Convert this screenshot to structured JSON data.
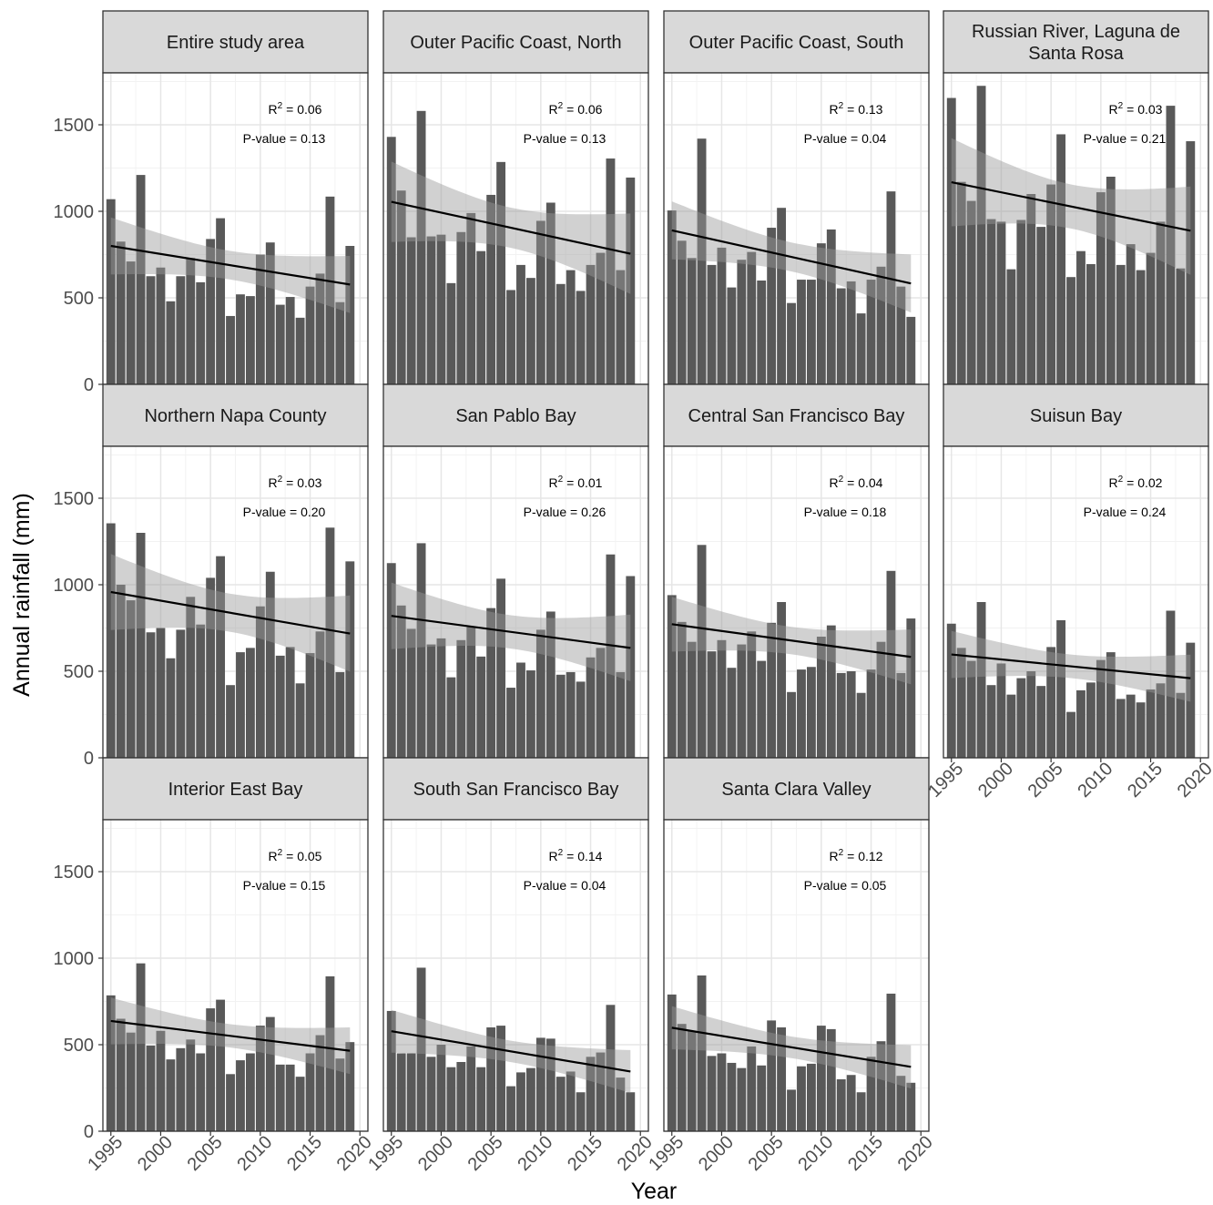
{
  "chart_data": {
    "type": "bar",
    "layout": "faceted 3x4 small multiples with linear trend line and confidence band",
    "xlabel": "Year",
    "ylabel": "Annual rainfall (mm)",
    "x_ticks": [
      1995,
      2000,
      2005,
      2010,
      2015,
      2020
    ],
    "y_ticks": [
      0,
      500,
      1000,
      1500
    ],
    "ylim": [
      0,
      1800
    ],
    "xlim": [
      1994.2,
      2020.8
    ],
    "grid": true,
    "colors": {
      "bar": "#595959",
      "band": "#999999",
      "trend": "#000000",
      "strip_bg": "#d9d9d9"
    },
    "years": [
      1995,
      1996,
      1997,
      1998,
      1999,
      2000,
      2001,
      2002,
      2003,
      2004,
      2005,
      2006,
      2007,
      2008,
      2009,
      2010,
      2011,
      2012,
      2013,
      2014,
      2015,
      2016,
      2017,
      2018,
      2019
    ],
    "panels": [
      {
        "title": "Entire study area",
        "r2": "0.06",
        "p_value": "P-value = 0.13",
        "values": [
          1070,
          825,
          710,
          1210,
          625,
          675,
          480,
          625,
          730,
          590,
          840,
          960,
          395,
          520,
          510,
          750,
          820,
          460,
          505,
          385,
          565,
          640,
          1085,
          475,
          800
        ],
        "trend": [
          800,
          577
        ],
        "band_lower": [
          630,
          420
        ],
        "band_upper": [
          970,
          740
        ]
      },
      {
        "title": "Outer Pacific Coast, North",
        "r2": "0.06",
        "p_value": "P-value = 0.13",
        "values": [
          1430,
          1120,
          850,
          1580,
          855,
          865,
          585,
          880,
          990,
          770,
          1095,
          1285,
          545,
          690,
          615,
          945,
          1050,
          580,
          660,
          540,
          690,
          760,
          1305,
          660,
          1195
        ],
        "trend": [
          1055,
          755
        ],
        "band_lower": [
          820,
          520
        ],
        "band_upper": [
          1280,
          990
        ]
      },
      {
        "title": "Outer Pacific Coast, South",
        "r2": "0.13",
        "p_value": "P-value = 0.04",
        "values": [
          1005,
          830,
          730,
          1420,
          690,
          790,
          560,
          720,
          765,
          600,
          905,
          1020,
          470,
          605,
          605,
          815,
          895,
          555,
          595,
          410,
          605,
          680,
          1115,
          565,
          390
        ],
        "trend": [
          890,
          583
        ],
        "band_lower": [
          720,
          420
        ],
        "band_upper": [
          1060,
          750
        ]
      },
      {
        "title": "Russian River, Laguna de Santa Rosa",
        "r2": "0.03",
        "p_value": "P-value = 0.21",
        "values": [
          1655,
          1170,
          1060,
          1725,
          955,
          940,
          665,
          950,
          1100,
          910,
          1155,
          1445,
          620,
          770,
          695,
          1110,
          1200,
          690,
          810,
          660,
          760,
          940,
          1610,
          670,
          1405
        ],
        "trend": [
          1168,
          888
        ],
        "band_lower": [
          920,
          630
        ],
        "band_upper": [
          1420,
          1150
        ]
      },
      {
        "title": "Northern Napa County",
        "r2": "0.03",
        "p_value": "P-value = 0.20",
        "values": [
          1355,
          1000,
          910,
          1300,
          725,
          750,
          575,
          740,
          930,
          770,
          1040,
          1165,
          420,
          610,
          635,
          875,
          1075,
          590,
          640,
          430,
          605,
          730,
          1330,
          495,
          1135
        ],
        "trend": [
          958,
          718
        ],
        "band_lower": [
          740,
          490
        ],
        "band_upper": [
          1170,
          940
        ]
      },
      {
        "title": "San Pablo Bay",
        "r2": "0.01",
        "p_value": "P-value = 0.26",
        "values": [
          1125,
          880,
          745,
          1240,
          655,
          690,
          465,
          680,
          755,
          585,
          865,
          1035,
          405,
          550,
          505,
          740,
          845,
          480,
          495,
          440,
          580,
          635,
          1175,
          495,
          1050
        ],
        "trend": [
          820,
          635
        ],
        "band_lower": [
          630,
          440
        ],
        "band_upper": [
          1010,
          830
        ]
      },
      {
        "title": "Central San Francisco Bay",
        "r2": "0.04",
        "p_value": "P-value = 0.18",
        "values": [
          940,
          785,
          670,
          1230,
          615,
          680,
          520,
          655,
          730,
          560,
          780,
          900,
          380,
          510,
          525,
          700,
          765,
          490,
          500,
          375,
          510,
          670,
          1080,
          490,
          805
        ],
        "trend": [
          772,
          583
        ],
        "band_lower": [
          610,
          425
        ],
        "band_upper": [
          930,
          740
        ]
      },
      {
        "title": "Suisun Bay",
        "r2": "0.02",
        "p_value": "P-value = 0.24",
        "values": [
          775,
          635,
          560,
          900,
          420,
          545,
          365,
          460,
          500,
          415,
          640,
          795,
          265,
          390,
          435,
          565,
          610,
          340,
          365,
          320,
          395,
          430,
          850,
          375,
          665
        ],
        "trend": [
          597,
          460
        ],
        "band_lower": [
          465,
          320
        ],
        "band_upper": [
          730,
          600
        ]
      },
      {
        "title": "Interior East Bay",
        "r2": "0.05",
        "p_value": "P-value = 0.15",
        "values": [
          785,
          650,
          570,
          970,
          495,
          580,
          415,
          480,
          530,
          450,
          710,
          760,
          330,
          410,
          450,
          610,
          660,
          385,
          385,
          315,
          450,
          555,
          895,
          420,
          515
        ],
        "trend": [
          637,
          465
        ],
        "band_lower": [
          500,
          330
        ],
        "band_upper": [
          770,
          600
        ]
      },
      {
        "title": "South San Francisco Bay",
        "r2": "0.14",
        "p_value": "P-value = 0.04",
        "values": [
          695,
          450,
          450,
          945,
          430,
          500,
          370,
          400,
          490,
          370,
          600,
          610,
          260,
          340,
          365,
          540,
          535,
          315,
          345,
          225,
          430,
          455,
          730,
          310,
          225
        ],
        "trend": [
          578,
          345
        ],
        "band_lower": [
          455,
          220
        ],
        "band_upper": [
          700,
          470
        ]
      },
      {
        "title": "Santa Clara Valley",
        "r2": "0.12",
        "p_value": "P-value = 0.05",
        "values": [
          790,
          620,
          580,
          900,
          435,
          450,
          395,
          365,
          490,
          380,
          640,
          600,
          240,
          375,
          390,
          610,
          590,
          300,
          325,
          225,
          430,
          520,
          795,
          320,
          280
        ],
        "trend": [
          598,
          372
        ],
        "band_lower": [
          470,
          250
        ],
        "band_upper": [
          725,
          495
        ]
      }
    ]
  }
}
